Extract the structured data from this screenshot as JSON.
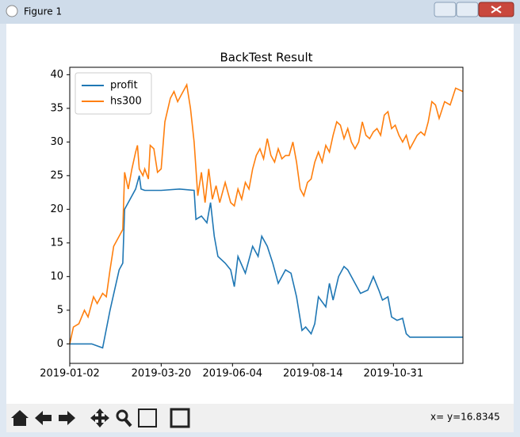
{
  "window": {
    "title": "Figure 1",
    "status": "x= y=16.8345"
  },
  "chart_data": {
    "type": "line",
    "title": "BackTest Result",
    "xlim": [
      0,
      215
    ],
    "ylim": [
      -2.9,
      41.1
    ],
    "xticks": [
      {
        "value": 0,
        "label": "2019-01-02"
      },
      {
        "value": 50,
        "label": "2019-03-20"
      },
      {
        "value": 89,
        "label": "2019-06-04"
      },
      {
        "value": 133,
        "label": "2019-08-14"
      },
      {
        "value": 177,
        "label": "2019-10-31"
      }
    ],
    "yticks": [
      0,
      5,
      10,
      15,
      20,
      25,
      30,
      35,
      40
    ],
    "legend": "upper left",
    "series": [
      {
        "name": "profit",
        "color": "#1f77b4",
        "x": [
          0,
          12,
          18,
          22,
          27,
          29,
          30,
          32,
          36,
          38,
          39,
          41,
          50,
          60,
          68,
          69,
          72,
          75,
          77,
          79,
          81,
          85,
          88,
          90,
          92,
          96,
          100,
          103,
          105,
          108,
          111,
          114,
          118,
          121,
          124,
          127,
          129,
          132,
          134,
          136,
          140,
          142,
          144,
          147,
          150,
          152,
          156,
          159,
          163,
          166,
          169,
          171,
          174,
          176,
          179,
          182,
          184,
          186,
          215
        ],
        "values": [
          0,
          0,
          -0.6,
          5,
          11,
          12,
          20,
          21,
          23,
          25,
          23,
          22.8,
          22.8,
          23,
          22.8,
          18.5,
          19,
          18,
          21,
          16,
          13,
          12,
          11,
          8.5,
          13,
          10.5,
          14.5,
          13,
          16,
          14.5,
          12,
          9,
          11,
          10.5,
          7,
          2,
          2.5,
          1.5,
          3,
          7,
          5.5,
          9,
          6.5,
          10,
          11.5,
          11,
          9,
          7.5,
          8,
          10,
          8,
          6.5,
          7,
          4,
          3.5,
          3.8,
          1.5,
          1,
          1
        ]
      },
      {
        "name": "hs300",
        "color": "#ff7f0e",
        "x": [
          0,
          2,
          5,
          8,
          10,
          13,
          15,
          18,
          20,
          22,
          24,
          27,
          29,
          30,
          32,
          34,
          36,
          37,
          38,
          40,
          41,
          43,
          44,
          46,
          48,
          50,
          52,
          55,
          57,
          59,
          61,
          64,
          66,
          68,
          70,
          72,
          74,
          76,
          78,
          80,
          82,
          85,
          88,
          90,
          92,
          94,
          96,
          98,
          100,
          102,
          104,
          106,
          108,
          110,
          112,
          114,
          116,
          118,
          120,
          122,
          124,
          126,
          128,
          130,
          132,
          134,
          136,
          138,
          140,
          142,
          144,
          146,
          148,
          150,
          152,
          154,
          156,
          158,
          160,
          162,
          164,
          166,
          168,
          170,
          172,
          174,
          176,
          178,
          180,
          182,
          184,
          186,
          188,
          190,
          192,
          194,
          196,
          198,
          200,
          202,
          205,
          208,
          211,
          215
        ],
        "values": [
          0,
          2.5,
          3,
          5,
          4,
          7,
          6,
          7.5,
          7,
          11,
          14.5,
          16,
          17,
          25.5,
          23,
          26,
          28.5,
          29.5,
          26,
          25,
          26,
          24.5,
          29.5,
          29,
          25.5,
          26,
          33,
          36.5,
          37.5,
          36,
          37,
          38.5,
          35,
          30,
          22,
          25.5,
          21,
          26,
          21.5,
          23.5,
          21,
          24,
          21,
          20.5,
          23,
          21.5,
          24,
          23,
          26,
          28,
          29,
          27.5,
          30.5,
          28,
          27,
          29,
          27.5,
          28,
          28,
          30,
          27,
          23,
          22,
          24,
          24.5,
          27,
          28.5,
          27,
          29.5,
          28.5,
          31,
          33,
          32.5,
          30.5,
          32,
          30,
          29,
          30,
          33,
          31,
          30.5,
          31.5,
          32,
          31,
          34,
          34.5,
          32,
          32.5,
          31,
          30,
          31,
          29,
          30,
          31,
          31.5,
          31,
          33,
          36,
          35.5,
          33.5,
          36,
          35.5,
          38,
          37.5
        ]
      }
    ]
  }
}
